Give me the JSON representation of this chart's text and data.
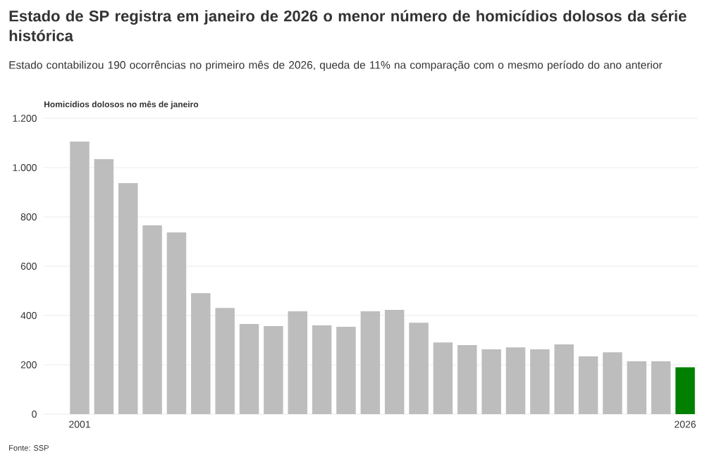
{
  "chart_data": {
    "type": "bar",
    "title": "Estado de SP registra em janeiro de 2026 o menor número de homicídios dolosos da série histórica",
    "subtitle": "Estado contabilizou 190 ocorrências no primeiro mês de 2026, queda de 11% na comparação com o mesmo período do ano anterior",
    "ylabel": "Homicídios dolosos no mês de janeiro",
    "annotations": [
      "Fonte: SSP"
    ],
    "categories": [
      "2001",
      null,
      null,
      null,
      null,
      null,
      null,
      null,
      null,
      null,
      null,
      null,
      null,
      null,
      null,
      null,
      null,
      null,
      null,
      null,
      null,
      null,
      null,
      null,
      null,
      "2026"
    ],
    "values": [
      1106,
      1034,
      937,
      766,
      737,
      491,
      431,
      366,
      357,
      417,
      360,
      354,
      417,
      423,
      371,
      291,
      280,
      263,
      271,
      263,
      283,
      234,
      251,
      214,
      214,
      190
    ],
    "colors": [
      "#bdbdbd",
      "#bdbdbd",
      "#bdbdbd",
      "#bdbdbd",
      "#bdbdbd",
      "#bdbdbd",
      "#bdbdbd",
      "#bdbdbd",
      "#bdbdbd",
      "#bdbdbd",
      "#bdbdbd",
      "#bdbdbd",
      "#bdbdbd",
      "#bdbdbd",
      "#bdbdbd",
      "#bdbdbd",
      "#bdbdbd",
      "#bdbdbd",
      "#bdbdbd",
      "#bdbdbd",
      "#bdbdbd",
      "#bdbdbd",
      "#bdbdbd",
      "#bdbdbd",
      "#bdbdbd",
      "#008000"
    ],
    "ylim": [
      0,
      1200
    ],
    "yticks": [
      0,
      200,
      400,
      600,
      800,
      {
        "value": 1000,
        "label": "1.000"
      },
      {
        "value": 1200,
        "label": "1.200"
      }
    ],
    "grid": "y"
  }
}
